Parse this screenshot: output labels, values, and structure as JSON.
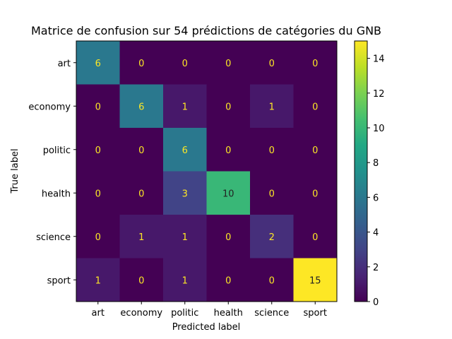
{
  "chart_data": {
    "type": "heatmap",
    "title": "Matrice de confusion sur 54 prédictions de catégories du GNB",
    "xlabel": "Predicted label",
    "ylabel": "True label",
    "x_categories": [
      "art",
      "economy",
      "politic",
      "health",
      "science",
      "sport"
    ],
    "y_categories": [
      "art",
      "economy",
      "politic",
      "health",
      "science",
      "sport"
    ],
    "values": [
      [
        6,
        0,
        0,
        0,
        0,
        0
      ],
      [
        0,
        6,
        1,
        0,
        1,
        0
      ],
      [
        0,
        0,
        6,
        0,
        0,
        0
      ],
      [
        0,
        0,
        3,
        10,
        0,
        0
      ],
      [
        0,
        1,
        1,
        0,
        2,
        0
      ],
      [
        1,
        0,
        1,
        0,
        0,
        15
      ]
    ],
    "colormap": "viridis",
    "color_range": [
      0,
      15
    ],
    "colorbar_ticks": [
      0,
      2,
      4,
      6,
      8,
      10,
      12,
      14
    ],
    "grid": false
  }
}
